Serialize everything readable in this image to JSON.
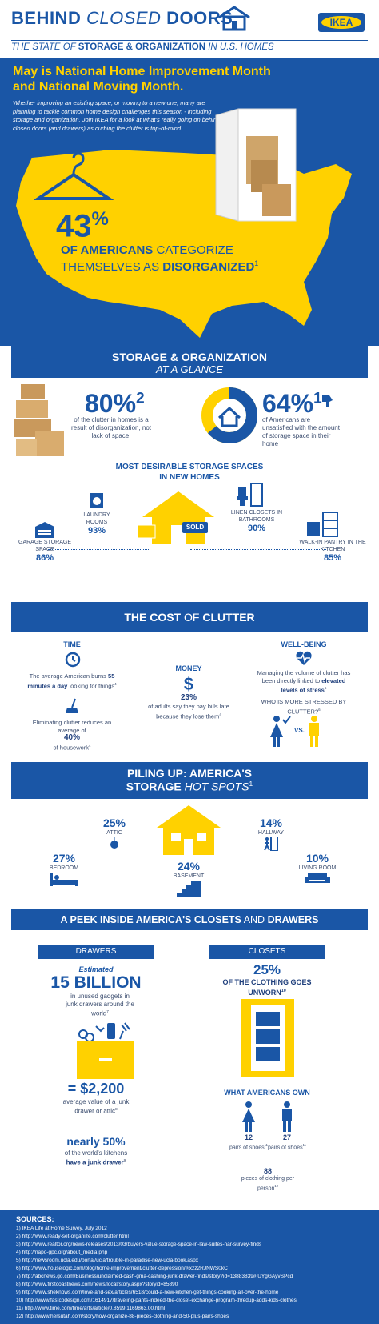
{
  "colors": {
    "blue": "#1a56a6",
    "yellow": "#ffd100",
    "dark_blue": "#123f80"
  },
  "header": {
    "title_part1": "BEHIND",
    "title_part2": "CLOSED",
    "title_part3": "DOORS",
    "subtitle_a": "THE STATE OF",
    "subtitle_b": "STORAGE & ORGANIZATION",
    "subtitle_c": "IN U.S. HOMES",
    "brand": "IKEA"
  },
  "intro": {
    "headline": "May is National Home Improvement Month and National Moving Month.",
    "body": "Whether improving an existing space, or moving to a new one, many are planning to tackle common home design challenges this season - including storage and organization. Join IKEA for a look at what's really going on behind closed doors (and drawers) as curbing the clutter is top-of-mind.",
    "stat": "43",
    "stat_pct": "%",
    "stat_line1a": "OF AMERICANS",
    "stat_line1b": "CATEGORIZE",
    "stat_line2a": "THEMSELVES AS",
    "stat_line2b": "DISORGANIZED",
    "stat_ref": "1"
  },
  "glance": {
    "title": "STORAGE & ORGANIZATION",
    "subtitle": "AT A GLANCE",
    "left_stat": "80%",
    "left_ref": "2",
    "left_text": "of the clutter in homes is a result of disorganization, not lack of space.",
    "right_stat": "64%",
    "right_ref": "1",
    "right_text": "of Americans are unsatisfied with the amount of storage space in their home",
    "desirable_title_1": "MOST DESIRABLE STORAGE SPACES",
    "desirable_title_2": "IN NEW HOMES",
    "sold": "SOLD",
    "spaces": [
      {
        "label": "LAUNDRY ROOMS",
        "ref": "3",
        "value": "93%"
      },
      {
        "label": "LINEN CLOSETS IN BATHROOMS",
        "ref": "3",
        "value": "90%"
      },
      {
        "label": "GARAGE STORAGE SPACE",
        "ref": "3",
        "value": "86%"
      },
      {
        "label": "WALK-IN PANTRY IN THE KITCHEN",
        "ref": "3",
        "value": "85%"
      }
    ]
  },
  "cost": {
    "title_a": "THE COST",
    "title_b": "OF",
    "title_c": "CLUTTER",
    "time_label": "TIME",
    "time_text_a": "The average American burns",
    "time_text_b": "55 minutes a day",
    "time_text_c": "looking for things",
    "time_ref": "4",
    "eliminate_text_a": "Eliminating clutter reduces an average of",
    "eliminate_value": "40%",
    "eliminate_text_b": "of housework",
    "eliminate_ref": "4",
    "money_label": "MONEY",
    "money_value": "23%",
    "money_text": "of adults say they pay bills late because they lose them",
    "money_ref": "4",
    "wellbeing_label": "WELL-BEING",
    "wellbeing_text_a": "Managing the volume of clutter has been directly linked to",
    "wellbeing_text_b": "elevated levels of stress",
    "wellbeing_ref": "5",
    "stressed_text": "WHO IS MORE STRESSED BY CLUTTER?",
    "stressed_ref": "6",
    "vs": "VS."
  },
  "hotspots": {
    "title_1": "PILING UP: AMERICA'S",
    "title_2a": "STORAGE",
    "title_2b": "HOT SPOTS",
    "title_ref": "1",
    "items": [
      {
        "value": "25%",
        "label": "ATTIC"
      },
      {
        "value": "14%",
        "label": "HALLWAY"
      },
      {
        "value": "27%",
        "label": "BEDROOM"
      },
      {
        "value": "24%",
        "label": "BASEMENT"
      },
      {
        "value": "10%",
        "label": "LIVING ROOM"
      }
    ]
  },
  "peek": {
    "title_a": "A PEEK INSIDE AMERICA'S CLOSETS",
    "title_b": "AND",
    "title_c": "DRAWERS",
    "drawers_tab": "DRAWERS",
    "closets_tab": "CLOSETS",
    "estimated": "Estimated",
    "billion": "15 BILLION",
    "billion_text": "in unused gadgets in junk drawers around the world",
    "billion_ref": "7",
    "value_2200": "= $2,200",
    "value_text": "average value of a junk drawer or attic",
    "value_ref": "8",
    "nearly": "nearly 50%",
    "nearly_text_a": "of the world's kitchens",
    "nearly_text_b": "have a junk drawer",
    "nearly_ref": "9",
    "unworn_value": "25%",
    "unworn_text": "OF THE CLOTHING GOES UNWORN",
    "unworn_ref": "10",
    "own_title": "WHAT AMERICANS OWN",
    "female_shoes_value": "12",
    "female_shoes_text": "pairs of shoes",
    "female_shoes_ref": "11",
    "male_shoes_value": "27",
    "male_shoes_text": "pairs of shoes",
    "male_shoes_ref": "11",
    "clothing_value": "88",
    "clothing_text": "pieces of clothing per person",
    "clothing_ref": "12"
  },
  "sources": {
    "title": "SOURCES:",
    "items": [
      "1) IKEA Life at Home Survey, July 2012",
      "2) http://www.ready-set-organize.com/clutter.html",
      "3) http://www.realtor.org/news-releases/2013/03/buyers-value-storage-space-in-law-suites-nar-survey-finds",
      "4) http://napo-gpc.org/about_media.php",
      "5) http://newsroom.ucla.edu/portal/ucla/trouble-in-paradise-new-ucla-book.aspx",
      "6) http://www.houselogic.com/blog/home-improvement/clutter-depression/#ixzz2RJNWS0kC",
      "7) http://abcnews.go.com/Business/unclaimed-cash-gma-cashing-junk-drawer-finds/story?id=13883839#.UYgGAyvSPcd",
      "8) http://www.firstcoastnews.com/news/local/story.aspx?storyid=85890",
      "9) http://www.sheknows.com/love-and-sex/articles/6518/could-a-new-kitchen-get-things-cooking-all-over-the-home",
      "10) http://www.fastcodesign.com/1614917/traveling-pants-indeed-the-closet-exchange-program-thredup-adds-kids-clothes",
      "11) http://www.time.com/time/arts/article/0,8599,1169863,00.html",
      "12) http://www.hersutah.com/story/how-organize-88-pieces-clothing-and-50-plus-pairs-shoes"
    ]
  }
}
